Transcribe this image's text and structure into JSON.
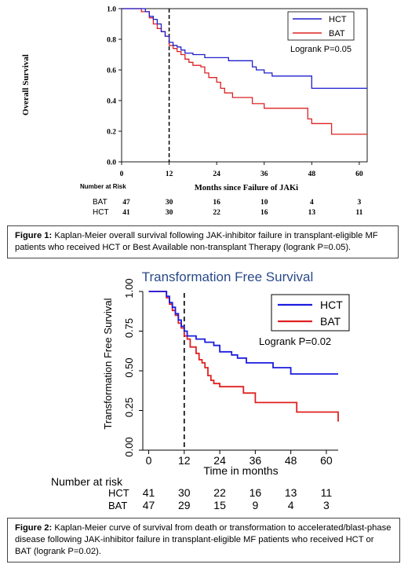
{
  "chart_data": [
    {
      "type": "line",
      "title": "",
      "xlabel": "Months since Failure of JAKi",
      "ylabel": "Overall Survival",
      "xlim": [
        0,
        62
      ],
      "ylim": [
        0,
        1
      ],
      "xticks": [
        "0",
        "12",
        "24",
        "36",
        "48",
        "60"
      ],
      "yticks": [
        "0.0",
        "0.2",
        "0.4",
        "0.6",
        "0.8",
        "1.0"
      ],
      "reference_line_x": 12,
      "legend_position": "top-right",
      "annotation": "Logrank P=0.05",
      "series": [
        {
          "name": "HCT",
          "color": "#1f1fcc",
          "x": [
            0,
            6,
            7,
            8,
            9,
            10,
            11,
            12,
            13,
            14,
            15,
            16,
            18,
            21,
            24,
            27,
            33,
            34,
            36,
            38,
            44,
            48,
            62
          ],
          "y": [
            1.0,
            0.98,
            0.95,
            0.93,
            0.9,
            0.85,
            0.82,
            0.78,
            0.76,
            0.75,
            0.73,
            0.71,
            0.7,
            0.68,
            0.68,
            0.66,
            0.62,
            0.6,
            0.58,
            0.56,
            0.56,
            0.48,
            0.48
          ]
        },
        {
          "name": "BAT",
          "color": "#dd2222",
          "x": [
            0,
            5,
            7,
            8,
            9,
            10,
            11,
            12,
            13,
            14,
            15,
            16,
            17,
            18,
            20,
            21,
            22,
            24,
            25,
            26,
            28,
            30,
            33,
            36,
            46,
            47,
            48,
            53,
            62
          ],
          "y": [
            1.0,
            0.98,
            0.94,
            0.9,
            0.87,
            0.85,
            0.82,
            0.76,
            0.74,
            0.72,
            0.7,
            0.67,
            0.65,
            0.63,
            0.62,
            0.58,
            0.55,
            0.52,
            0.48,
            0.45,
            0.42,
            0.42,
            0.38,
            0.35,
            0.35,
            0.28,
            0.25,
            0.18,
            0.18
          ]
        }
      ],
      "risk_table": {
        "label": "Number at Risk",
        "rows": [
          {
            "name": "BAT",
            "values": [
              "47",
              "30",
              "16",
              "10",
              "4",
              "3"
            ]
          },
          {
            "name": "HCT",
            "values": [
              "41",
              "30",
              "22",
              "16",
              "13",
              "11"
            ]
          }
        ]
      }
    },
    {
      "type": "line",
      "title": "Transformation Free Survival",
      "xlabel": "Time in months",
      "ylabel": "Transformation Free Survival",
      "xlim": [
        -2,
        64
      ],
      "ylim": [
        0,
        1
      ],
      "xticks": [
        "0",
        "12",
        "24",
        "36",
        "48",
        "60"
      ],
      "yticks": [
        "0.00",
        "0.25",
        "0.50",
        "0.75",
        "1.00"
      ],
      "reference_line_x": 12,
      "legend_position": "top-right",
      "annotation": "Logrank P=0.02",
      "series": [
        {
          "name": "HCT",
          "color": "#1c1ce0",
          "x": [
            0,
            4,
            6,
            7,
            8,
            9,
            10,
            11,
            12,
            13,
            14,
            16,
            19,
            22,
            24,
            28,
            30,
            33,
            36,
            42,
            45,
            48,
            64
          ],
          "y": [
            1.0,
            1.0,
            0.97,
            0.93,
            0.9,
            0.86,
            0.82,
            0.78,
            0.75,
            0.72,
            0.72,
            0.7,
            0.68,
            0.66,
            0.62,
            0.6,
            0.58,
            0.55,
            0.55,
            0.52,
            0.52,
            0.48,
            0.48
          ]
        },
        {
          "name": "BAT",
          "color": "#e02020",
          "x": [
            0,
            4,
            6,
            7,
            8,
            9,
            10,
            11,
            12,
            13,
            14,
            16,
            17,
            18,
            19,
            20,
            21,
            22,
            24,
            30,
            32,
            36,
            47,
            50,
            64
          ],
          "y": [
            1.0,
            1.0,
            0.96,
            0.92,
            0.88,
            0.85,
            0.8,
            0.77,
            0.72,
            0.7,
            0.65,
            0.61,
            0.57,
            0.55,
            0.52,
            0.47,
            0.44,
            0.42,
            0.4,
            0.4,
            0.36,
            0.3,
            0.3,
            0.24,
            0.18
          ]
        }
      ],
      "risk_table": {
        "label": "Number at risk",
        "rows": [
          {
            "name": "HCT",
            "values": [
              "41",
              "30",
              "22",
              "16",
              "13",
              "11"
            ]
          },
          {
            "name": "BAT",
            "values": [
              "47",
              "29",
              "15",
              "9",
              "4",
              "3"
            ]
          }
        ]
      }
    }
  ],
  "captions": {
    "fig1_label": "Figure 1:",
    "fig1_text": " Kaplan-Meier overall survival following JAK-inhibitor failure in transplant-eligible MF patients who received HCT or Best Available non-transplant Therapy (logrank P=0.05).",
    "fig2_label": "Figure 2:",
    "fig2_text": " Kaplan-Meier curve of survival from death or transformation to accelerated/blast-phase disease following JAK-inhibitor failure in transplant-eligible MF patients who received HCT or BAT (logrank P=0.02)."
  }
}
